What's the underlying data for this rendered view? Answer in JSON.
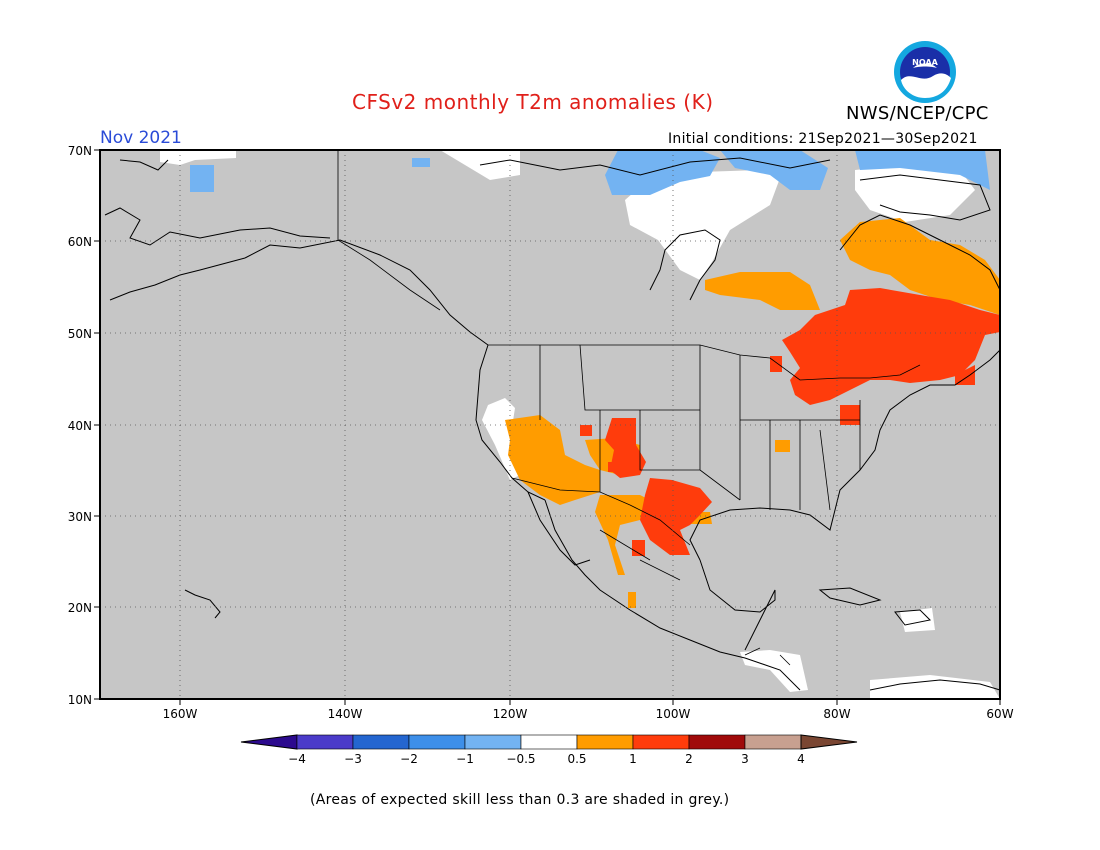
{
  "header": {
    "title": "CFSv2 monthly T2m anomalies (K)",
    "agency": "NWS/NCEP/CPC",
    "period": "Nov 2021",
    "initial_conditions": "Initial conditions: 21Sep2021—30Sep2021",
    "logo_text": "NOAA"
  },
  "footnote": "(Areas of expected skill less than 0.3 are shaded in grey.)",
  "map": {
    "lon_range": [
      -170,
      -60
    ],
    "lat_range": [
      10,
      70
    ],
    "lat_ticks": [
      "70N",
      "60N",
      "50N",
      "40N",
      "30N",
      "20N",
      "10N"
    ],
    "lon_ticks": [
      "160W",
      "140W",
      "120W",
      "100W",
      "80W",
      "60W"
    ],
    "colors": {
      "no_skill": "#c6c6c6",
      "near_normal": "#ffffff",
      "warm_05_1": "#ff9c00",
      "warm_1_2": "#ff3c0c",
      "cool_m1_m05": "#73b3f2"
    }
  },
  "colorbar": {
    "labels": [
      "−4",
      "−3",
      "−2",
      "−1",
      "−0.5",
      "0.5",
      "1",
      "2",
      "3",
      "4"
    ],
    "colors": [
      "#2c0a8e",
      "#4b3bc9",
      "#2466d0",
      "#3d8fe9",
      "#73b3f2",
      "#ffffff",
      "#ff9c00",
      "#ff3c0c",
      "#a00a0a",
      "#c8a090",
      "#7a4632"
    ]
  }
}
